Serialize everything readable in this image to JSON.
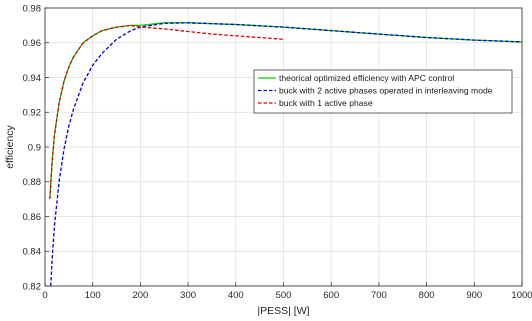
{
  "chart_data": {
    "type": "line",
    "title": "",
    "xlabel": "|PESS| [W]",
    "ylabel": "efficiency",
    "xlim": [
      0,
      1000
    ],
    "ylim": [
      0.82,
      0.98
    ],
    "x_ticks": [
      0,
      100,
      200,
      300,
      400,
      500,
      600,
      700,
      800,
      900,
      1000
    ],
    "y_ticks": [
      0.82,
      0.84,
      0.86,
      0.88,
      0.9,
      0.92,
      0.94,
      0.96,
      0.98
    ],
    "grid": true,
    "legend_position": "center-right",
    "series": [
      {
        "name": "theorical optimized efficiency with APC control",
        "color": "#00cc00",
        "dash": "solid",
        "x": [
          10,
          15,
          20,
          30,
          40,
          50,
          60,
          80,
          100,
          120,
          150,
          180,
          200,
          250,
          300,
          400,
          500,
          600,
          700,
          800,
          900,
          1000
        ],
        "y": [
          0.87,
          0.892,
          0.907,
          0.926,
          0.938,
          0.946,
          0.952,
          0.96,
          0.964,
          0.967,
          0.969,
          0.97,
          0.97,
          0.9715,
          0.9715,
          0.9705,
          0.969,
          0.967,
          0.965,
          0.963,
          0.9615,
          0.9605
        ]
      },
      {
        "name": "buck with 2 active phases operated in interleaving mode",
        "color": "#0000cc",
        "dash": "dashed",
        "x": [
          12,
          15,
          20,
          30,
          40,
          50,
          60,
          80,
          100,
          120,
          150,
          180,
          200,
          250,
          300,
          400,
          500,
          600,
          700,
          800,
          900,
          1000
        ],
        "y": [
          0.82,
          0.836,
          0.855,
          0.881,
          0.899,
          0.912,
          0.922,
          0.937,
          0.947,
          0.954,
          0.962,
          0.967,
          0.969,
          0.9712,
          0.9715,
          0.9705,
          0.969,
          0.967,
          0.965,
          0.963,
          0.9615,
          0.9605
        ]
      },
      {
        "name": "buck with 1 active phase",
        "color": "#dd0000",
        "dash": "dashed",
        "x": [
          10,
          15,
          20,
          30,
          40,
          50,
          60,
          80,
          100,
          120,
          150,
          180,
          200,
          250,
          300,
          350,
          400,
          450,
          500
        ],
        "y": [
          0.87,
          0.892,
          0.907,
          0.926,
          0.938,
          0.946,
          0.952,
          0.96,
          0.964,
          0.967,
          0.969,
          0.97,
          0.969,
          0.968,
          0.9665,
          0.965,
          0.964,
          0.963,
          0.962
        ]
      }
    ]
  }
}
